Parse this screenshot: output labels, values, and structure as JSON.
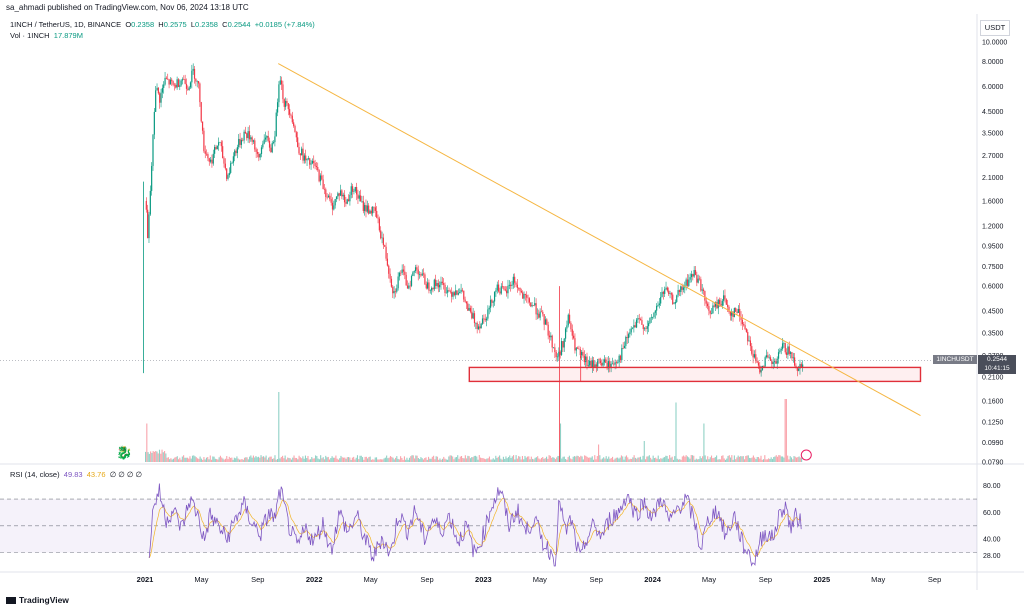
{
  "header": {
    "published": "sa_ahmadi published on TradingView.com, Nov 06, 2024 13:18 UTC",
    "symbol": "1INCH / TetherUS, 1D, BINANCE",
    "o_label": "O",
    "o_value": "0.2358",
    "h_label": "H",
    "h_value": "0.2575",
    "l_label": "L",
    "l_value": "0.2358",
    "c_label": "C",
    "c_value": "0.2544",
    "change": "+0.0185 (+7.84%)",
    "vol_label": "Vol · 1INCH",
    "vol_value": "17.879M"
  },
  "currency": "USDT",
  "rsi": {
    "label": "RSI (14, close)",
    "value": "49.83",
    "ma_value": "43.76",
    "extra": "∅ ∅ ∅ ∅",
    "levels": [
      "80.00",
      "60.00",
      "40.00",
      "28.00"
    ]
  },
  "price_tag": {
    "symbol": "1INCHUSDT",
    "price": "0.2544",
    "countdown": "10:41:15"
  },
  "footer": {
    "brand": "TradingView"
  },
  "colors": {
    "up": "#089981",
    "down": "#f23645",
    "trend": "#f5b642",
    "zone": "#e0303a",
    "rsi": "#7e57c2",
    "rsi_ma": "#f2b52a"
  },
  "chart_data": {
    "type": "candlestick",
    "title": "1INCH / TetherUS, 1D, BINANCE",
    "scale": "log",
    "y_ticks": [
      10.0,
      8.0,
      6.0,
      4.5,
      3.5,
      2.7,
      2.1,
      1.6,
      1.2,
      0.95,
      0.75,
      0.6,
      0.45,
      0.35,
      0.27,
      0.21,
      0.16,
      0.125,
      0.099,
      0.079
    ],
    "y_tick_labels": [
      "10.0000",
      "8.0000",
      "6.0000",
      "4.5000",
      "3.5000",
      "2.7000",
      "2.1000",
      "1.6000",
      "1.2000",
      "0.9500",
      "0.7500",
      "0.6000",
      "0.4500",
      "0.3500",
      "0.2700",
      "0.2100",
      "0.1600",
      "0.1250",
      "0.0990",
      "0.0790"
    ],
    "x_labels": [
      "2021",
      "May",
      "Sep",
      "2022",
      "May",
      "Sep",
      "2023",
      "May",
      "Sep",
      "2024",
      "May",
      "Sep",
      "2025",
      "May",
      "Sep"
    ],
    "x_label_months": [
      0,
      4,
      8,
      12,
      16,
      20,
      24,
      28,
      32,
      36,
      40,
      44,
      48,
      52,
      56
    ],
    "price_path": [
      {
        "m": -0.1,
        "p": 0.25
      },
      {
        "m": 0.0,
        "p": 1.6
      },
      {
        "m": 0.15,
        "p": 1.0
      },
      {
        "m": 0.5,
        "p": 3.0
      },
      {
        "m": 0.7,
        "p": 6.0
      },
      {
        "m": 1.0,
        "p": 5.2
      },
      {
        "m": 1.4,
        "p": 6.5
      },
      {
        "m": 2.0,
        "p": 6.0
      },
      {
        "m": 2.6,
        "p": 6.6
      },
      {
        "m": 3.0,
        "p": 6.0
      },
      {
        "m": 3.4,
        "p": 7.2
      },
      {
        "m": 3.8,
        "p": 5.8
      },
      {
        "m": 4.1,
        "p": 3.0
      },
      {
        "m": 4.6,
        "p": 2.5
      },
      {
        "m": 5.2,
        "p": 3.2
      },
      {
        "m": 5.8,
        "p": 2.1
      },
      {
        "m": 6.3,
        "p": 2.8
      },
      {
        "m": 7.0,
        "p": 3.5
      },
      {
        "m": 7.6,
        "p": 3.3
      },
      {
        "m": 8.0,
        "p": 2.5
      },
      {
        "m": 8.4,
        "p": 3.4
      },
      {
        "m": 8.9,
        "p": 2.9
      },
      {
        "m": 9.2,
        "p": 3.6
      },
      {
        "m": 9.5,
        "p": 7.2
      },
      {
        "m": 9.8,
        "p": 5.0
      },
      {
        "m": 10.3,
        "p": 4.5
      },
      {
        "m": 10.8,
        "p": 3.0
      },
      {
        "m": 11.4,
        "p": 2.5
      },
      {
        "m": 12.0,
        "p": 2.4
      },
      {
        "m": 12.6,
        "p": 1.9
      },
      {
        "m": 13.2,
        "p": 1.5
      },
      {
        "m": 13.8,
        "p": 1.8
      },
      {
        "m": 14.2,
        "p": 1.55
      },
      {
        "m": 14.7,
        "p": 1.9
      },
      {
        "m": 15.4,
        "p": 1.5
      },
      {
        "m": 16.3,
        "p": 1.4
      },
      {
        "m": 16.9,
        "p": 0.95
      },
      {
        "m": 17.6,
        "p": 0.55
      },
      {
        "m": 18.1,
        "p": 0.72
      },
      {
        "m": 18.6,
        "p": 0.6
      },
      {
        "m": 19.2,
        "p": 0.75
      },
      {
        "m": 20.0,
        "p": 0.6
      },
      {
        "m": 20.8,
        "p": 0.62
      },
      {
        "m": 21.6,
        "p": 0.56
      },
      {
        "m": 22.3,
        "p": 0.58
      },
      {
        "m": 22.9,
        "p": 0.45
      },
      {
        "m": 23.6,
        "p": 0.38
      },
      {
        "m": 24.3,
        "p": 0.45
      },
      {
        "m": 24.9,
        "p": 0.6
      },
      {
        "m": 25.5,
        "p": 0.55
      },
      {
        "m": 26.1,
        "p": 0.65
      },
      {
        "m": 26.8,
        "p": 0.52
      },
      {
        "m": 27.5,
        "p": 0.48
      },
      {
        "m": 28.3,
        "p": 0.4
      },
      {
        "m": 28.9,
        "p": 0.3
      },
      {
        "m": 29.2,
        "p": 0.26
      },
      {
        "m": 29.7,
        "p": 0.33
      },
      {
        "m": 30.0,
        "p": 0.42
      },
      {
        "m": 30.4,
        "p": 0.3
      },
      {
        "m": 31.0,
        "p": 0.26
      },
      {
        "m": 31.5,
        "p": 0.24
      },
      {
        "m": 32.2,
        "p": 0.25
      },
      {
        "m": 33.0,
        "p": 0.24
      },
      {
        "m": 33.7,
        "p": 0.27
      },
      {
        "m": 34.3,
        "p": 0.35
      },
      {
        "m": 35.0,
        "p": 0.4
      },
      {
        "m": 35.6,
        "p": 0.37
      },
      {
        "m": 36.2,
        "p": 0.46
      },
      {
        "m": 36.8,
        "p": 0.58
      },
      {
        "m": 37.4,
        "p": 0.5
      },
      {
        "m": 37.9,
        "p": 0.56
      },
      {
        "m": 38.5,
        "p": 0.64
      },
      {
        "m": 38.9,
        "p": 0.7
      },
      {
        "m": 39.4,
        "p": 0.6
      },
      {
        "m": 39.9,
        "p": 0.44
      },
      {
        "m": 40.5,
        "p": 0.48
      },
      {
        "m": 41.0,
        "p": 0.52
      },
      {
        "m": 41.5,
        "p": 0.44
      },
      {
        "m": 42.0,
        "p": 0.45
      },
      {
        "m": 42.6,
        "p": 0.36
      },
      {
        "m": 43.0,
        "p": 0.28
      },
      {
        "m": 43.5,
        "p": 0.23
      },
      {
        "m": 44.0,
        "p": 0.26
      },
      {
        "m": 44.6,
        "p": 0.24
      },
      {
        "m": 45.2,
        "p": 0.3
      },
      {
        "m": 45.8,
        "p": 0.27
      },
      {
        "m": 46.3,
        "p": 0.23
      },
      {
        "m": 46.6,
        "p": 0.2544
      }
    ],
    "wicks": [
      {
        "m": 29.4,
        "low": 0.079,
        "high": 0.6
      },
      {
        "m": 30.9,
        "low": 0.2,
        "high": 0.27
      }
    ],
    "trendline": {
      "start": {
        "m": 9.45,
        "p": 7.8
      },
      "end": {
        "m": 55.0,
        "p": 0.135
      }
    },
    "support_zone": {
      "m_start": 23.0,
      "m_end": 55.0,
      "p_low": 0.2,
      "p_high": 0.235
    },
    "last_price": 0.2544,
    "rsi_range": [
      20,
      88
    ],
    "rsi_levels": [
      70,
      50,
      30
    ],
    "rsi_path": [
      {
        "m": 0.3,
        "v": 30
      },
      {
        "m": 0.6,
        "v": 65
      },
      {
        "m": 1.0,
        "v": 76
      },
      {
        "m": 1.5,
        "v": 55
      },
      {
        "m": 2.0,
        "v": 62
      },
      {
        "m": 2.6,
        "v": 48
      },
      {
        "m": 3.2,
        "v": 70
      },
      {
        "m": 3.8,
        "v": 57
      },
      {
        "m": 4.2,
        "v": 38
      },
      {
        "m": 4.6,
        "v": 58
      },
      {
        "m": 5.2,
        "v": 50
      },
      {
        "m": 5.8,
        "v": 40
      },
      {
        "m": 6.4,
        "v": 55
      },
      {
        "m": 7.0,
        "v": 66
      },
      {
        "m": 7.6,
        "v": 52
      },
      {
        "m": 8.2,
        "v": 44
      },
      {
        "m": 8.8,
        "v": 60
      },
      {
        "m": 9.2,
        "v": 55
      },
      {
        "m": 9.6,
        "v": 77
      },
      {
        "m": 10.2,
        "v": 50
      },
      {
        "m": 10.8,
        "v": 34
      },
      {
        "m": 11.4,
        "v": 48
      },
      {
        "m": 12.0,
        "v": 38
      },
      {
        "m": 12.6,
        "v": 52
      },
      {
        "m": 13.2,
        "v": 32
      },
      {
        "m": 13.8,
        "v": 60
      },
      {
        "m": 14.4,
        "v": 45
      },
      {
        "m": 15.0,
        "v": 58
      },
      {
        "m": 15.6,
        "v": 40
      },
      {
        "m": 16.2,
        "v": 26
      },
      {
        "m": 16.8,
        "v": 42
      },
      {
        "m": 17.4,
        "v": 28
      },
      {
        "m": 18.0,
        "v": 60
      },
      {
        "m": 18.6,
        "v": 46
      },
      {
        "m": 19.2,
        "v": 62
      },
      {
        "m": 19.8,
        "v": 40
      },
      {
        "m": 20.4,
        "v": 55
      },
      {
        "m": 21.0,
        "v": 46
      },
      {
        "m": 21.6,
        "v": 58
      },
      {
        "m": 22.2,
        "v": 38
      },
      {
        "m": 22.8,
        "v": 50
      },
      {
        "m": 23.4,
        "v": 28
      },
      {
        "m": 24.0,
        "v": 44
      },
      {
        "m": 24.6,
        "v": 66
      },
      {
        "m": 25.2,
        "v": 78
      },
      {
        "m": 25.8,
        "v": 50
      },
      {
        "m": 26.4,
        "v": 62
      },
      {
        "m": 27.0,
        "v": 45
      },
      {
        "m": 27.6,
        "v": 56
      },
      {
        "m": 28.2,
        "v": 38
      },
      {
        "m": 28.8,
        "v": 30
      },
      {
        "m": 29.1,
        "v": 24
      },
      {
        "m": 29.4,
        "v": 72
      },
      {
        "m": 29.8,
        "v": 44
      },
      {
        "m": 30.2,
        "v": 55
      },
      {
        "m": 30.6,
        "v": 36
      },
      {
        "m": 30.9,
        "v": 24
      },
      {
        "m": 31.3,
        "v": 40
      },
      {
        "m": 31.8,
        "v": 50
      },
      {
        "m": 32.4,
        "v": 42
      },
      {
        "m": 33.0,
        "v": 56
      },
      {
        "m": 33.6,
        "v": 60
      },
      {
        "m": 34.2,
        "v": 74
      },
      {
        "m": 34.8,
        "v": 58
      },
      {
        "m": 35.4,
        "v": 68
      },
      {
        "m": 36.0,
        "v": 55
      },
      {
        "m": 36.6,
        "v": 72
      },
      {
        "m": 37.2,
        "v": 52
      },
      {
        "m": 37.8,
        "v": 64
      },
      {
        "m": 38.4,
        "v": 70
      },
      {
        "m": 39.0,
        "v": 52
      },
      {
        "m": 39.4,
        "v": 33
      },
      {
        "m": 40.0,
        "v": 56
      },
      {
        "m": 40.6,
        "v": 62
      },
      {
        "m": 41.2,
        "v": 42
      },
      {
        "m": 41.8,
        "v": 58
      },
      {
        "m": 42.4,
        "v": 36
      },
      {
        "m": 42.8,
        "v": 30
      },
      {
        "m": 43.2,
        "v": 22
      },
      {
        "m": 43.6,
        "v": 38
      },
      {
        "m": 44.0,
        "v": 46
      },
      {
        "m": 44.5,
        "v": 40
      },
      {
        "m": 45.0,
        "v": 58
      },
      {
        "m": 45.4,
        "v": 66
      },
      {
        "m": 45.8,
        "v": 48
      },
      {
        "m": 46.2,
        "v": 58
      },
      {
        "m": 46.6,
        "v": 49.83
      }
    ],
    "volume_spikes": [
      {
        "m": 0.1,
        "v": 0.55
      },
      {
        "m": 9.45,
        "v": 1.0
      },
      {
        "m": 29.4,
        "v": 0.55
      },
      {
        "m": 32.1,
        "v": 0.25
      },
      {
        "m": 35.4,
        "v": 0.3
      },
      {
        "m": 37.6,
        "v": 0.85
      },
      {
        "m": 39.6,
        "v": 0.55
      },
      {
        "m": 45.4,
        "v": 0.9
      }
    ]
  }
}
